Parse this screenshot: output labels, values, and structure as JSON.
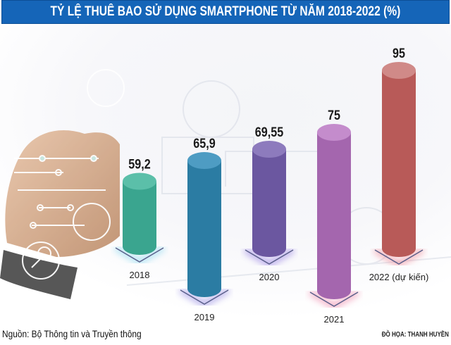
{
  "header": {
    "title": "TỶ LỆ THUÊ BAO SỬ DỤNG SMARTPHONE TỪ NĂM 2018-2022 (%)"
  },
  "footer": {
    "source": "Nguồn: Bộ Thông tin và Truyền thông",
    "credit": "ĐỒ HỌA: THANH HUYỀN"
  },
  "chart_data": {
    "type": "bar",
    "title": "TỶ LỆ THUÊ BAO SỬ DỤNG SMARTPHONE TỪ NĂM 2018-2022 (%)",
    "xlabel": "",
    "ylabel": "%",
    "categories": [
      "2018",
      "2019",
      "2020",
      "2021",
      "2022 (dự kiến)"
    ],
    "values": [
      59.2,
      65.9,
      69.55,
      75,
      95
    ],
    "value_labels": [
      "59,2",
      "65,9",
      "69,55",
      "75",
      "95"
    ],
    "colors": [
      "#3aa58f",
      "#2b7ca3",
      "#6b57a0",
      "#a466ae",
      "#b85a58"
    ],
    "top_colors": [
      "#5bbfa9",
      "#4e9cc3",
      "#8d7bbd",
      "#c48ccc",
      "#d08a88"
    ],
    "glow_colors": [
      "#7fd3ee",
      "#8a7fe0",
      "#8a6fe0",
      "#f07aa0",
      "#f07a8a"
    ],
    "grid": false,
    "legend": "none"
  }
}
